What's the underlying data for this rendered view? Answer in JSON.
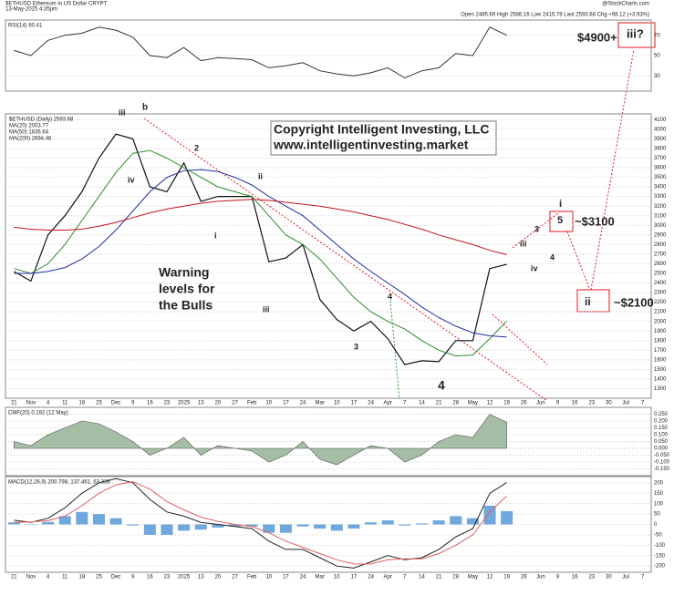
{
  "header": {
    "symbol": "$ETHUSD Ethereum in US Dollar CRYPT",
    "date": "13-May-2025 4:35pm",
    "quote": "Open 2485.69  High 2586.16  Low 2415.78  Last 2593.68  Chg +98.12 (+3.93%)",
    "source": "@StockCharts.com"
  },
  "chart_data": [
    {
      "type": "line",
      "title": "RSI(14) 60.41",
      "ylim": [
        15,
        85
      ],
      "yticks": [
        30,
        50,
        70
      ],
      "grid": true,
      "series": [
        {
          "name": "RSI(14)",
          "color": "#333333",
          "values": [
            55,
            50,
            65,
            70,
            72,
            78,
            75,
            68,
            50,
            48,
            58,
            45,
            48,
            47,
            46,
            38,
            40,
            43,
            35,
            32,
            30,
            33,
            38,
            28,
            35,
            38,
            52,
            50,
            78,
            70,
            null,
            null,
            null,
            null,
            null,
            null,
            null,
            null
          ]
        }
      ]
    },
    {
      "type": "line",
      "ylim": [
        1200,
        4160
      ],
      "yticks": [
        1300,
        1400,
        1500,
        1600,
        1700,
        1800,
        1900,
        2000,
        2100,
        2200,
        2300,
        2400,
        2500,
        2600,
        2700,
        2800,
        2900,
        3000,
        3100,
        3200,
        3300,
        3400,
        3500,
        3600,
        3700,
        3800,
        3900,
        4000,
        4100
      ],
      "grid": true,
      "categories": [
        "21",
        "Nov",
        "4",
        "11",
        "18",
        "25",
        "Dec",
        "9",
        "16",
        "23",
        "2025",
        "13",
        "20",
        "27",
        "Feb",
        "10",
        "17",
        "24",
        "Mar",
        "10",
        "17",
        "24",
        "Apr",
        "7",
        "14",
        "21",
        "28",
        "May",
        "12",
        "19",
        "26",
        "Jun",
        "9",
        "16",
        "23",
        "30",
        "Jul",
        "7"
      ],
      "series": [
        {
          "name": "$ETHUSD (Daily) 2593.68",
          "color": "#111111",
          "values": [
            2520,
            2420,
            2900,
            3100,
            3350,
            3700,
            3950,
            3900,
            3400,
            3350,
            3650,
            3250,
            3300,
            3300,
            3300,
            2620,
            2660,
            2800,
            2230,
            2020,
            1900,
            2000,
            1820,
            1550,
            1590,
            1580,
            1800,
            1800,
            2550,
            2594,
            null,
            null,
            null,
            null,
            null,
            null,
            null,
            null
          ]
        },
        {
          "name": "MA(20) 2003.77",
          "color": "#2e8b2e",
          "values": [
            2550,
            2500,
            2600,
            2800,
            3050,
            3300,
            3550,
            3750,
            3780,
            3700,
            3600,
            3500,
            3400,
            3350,
            3300,
            3100,
            2900,
            2800,
            2650,
            2450,
            2250,
            2100,
            2000,
            1920,
            1800,
            1700,
            1640,
            1650,
            1820,
            2004,
            null,
            null,
            null,
            null,
            null,
            null,
            null,
            null
          ]
        },
        {
          "name": "MA(50) 1836.64",
          "color": "#1f2fa0",
          "values": [
            2500,
            2500,
            2520,
            2560,
            2650,
            2780,
            2950,
            3150,
            3350,
            3500,
            3570,
            3580,
            3560,
            3500,
            3420,
            3300,
            3200,
            3100,
            2950,
            2800,
            2650,
            2520,
            2400,
            2280,
            2150,
            2040,
            1950,
            1880,
            1850,
            1837,
            null,
            null,
            null,
            null,
            null,
            null,
            null,
            null
          ]
        },
        {
          "name": "MA(200) 2694.46",
          "color": "#c0141c",
          "values": [
            2980,
            2960,
            2950,
            2950,
            2960,
            2990,
            3030,
            3080,
            3130,
            3170,
            3200,
            3230,
            3250,
            3260,
            3270,
            3260,
            3240,
            3220,
            3200,
            3170,
            3140,
            3100,
            3060,
            3010,
            2960,
            2900,
            2850,
            2800,
            2740,
            2694,
            null,
            null,
            null,
            null,
            null,
            null,
            null,
            null
          ]
        }
      ],
      "annotations": [
        {
          "text": "Copyright Intelligent Investing, LLC",
          "color": "#000000"
        },
        {
          "text": "www.intelligentinvesting.market",
          "color": "#000000"
        },
        {
          "text": "Warning",
          "color": "#e0141c"
        },
        {
          "text": "levels for",
          "color": "#e0141c"
        },
        {
          "text": "the Bulls",
          "color": "#e0141c"
        },
        {
          "text": "$4900+",
          "color": "#e0141c"
        },
        {
          "text": "iii?",
          "color": "#e0141c"
        },
        {
          "text": "i",
          "color": "#e0141c"
        },
        {
          "text": "5",
          "color": "#2e9a2e"
        },
        {
          "text": "~$3100",
          "color": "#e0141c"
        },
        {
          "text": "ii",
          "color": "#e0141c"
        },
        {
          "text": "~$2100",
          "color": "#e0141c"
        },
        {
          "text": "iii",
          "color": "#555555"
        },
        {
          "text": "b",
          "color": "#e0141c"
        },
        {
          "text": "2",
          "color": "#2e9a2e"
        },
        {
          "text": "ii",
          "color": "#555555"
        },
        {
          "text": "iv",
          "color": "#555555"
        },
        {
          "text": "i",
          "color": "#555555"
        },
        {
          "text": "iii",
          "color": "#555555"
        },
        {
          "text": "4",
          "color": "#2e9a2e"
        },
        {
          "text": "3",
          "color": "#2e9a2e"
        },
        {
          "text": "4",
          "color": "#111111"
        },
        {
          "text": "3",
          "color": "#2e9a2e"
        },
        {
          "text": "4",
          "color": "#2e9a2e"
        },
        {
          "text": "iii",
          "color": "#555555"
        },
        {
          "text": "iv",
          "color": "#555555"
        }
      ]
    },
    {
      "type": "area",
      "title": "CMF(20) 0.192 (12 May)",
      "ylim": [
        -0.2,
        0.3
      ],
      "color": "#8fae8f",
      "yticks": [
        {
          "value": 0.25,
          "label": "0.250"
        },
        {
          "value": 0.2,
          "label": "0.200"
        },
        {
          "value": 0.15,
          "label": "0.150"
        },
        {
          "value": 0.1,
          "label": "0.100"
        },
        {
          "value": 0.05,
          "label": "0.050"
        },
        {
          "value": 0,
          "label": "0.000"
        },
        {
          "value": -0.05,
          "label": "-0.050"
        },
        {
          "value": -0.1,
          "label": "-0.100"
        },
        {
          "value": -0.15,
          "label": "-0.150"
        }
      ],
      "grid": true,
      "series": [
        {
          "name": "CMF(20)",
          "color": "#555555",
          "values": [
            0.05,
            0.02,
            0.1,
            0.15,
            0.2,
            0.18,
            0.12,
            0.05,
            -0.05,
            0,
            0.08,
            -0.05,
            0.02,
            0,
            -0.02,
            -0.1,
            -0.05,
            0.05,
            -0.08,
            -0.12,
            -0.05,
            0.02,
            0,
            -0.1,
            -0.05,
            0.05,
            0.1,
            0.08,
            0.25,
            0.19,
            null,
            null,
            null,
            null,
            null,
            null,
            null,
            null
          ]
        }
      ]
    },
    {
      "type": "line",
      "title": "MACD(12,26,9) 200.798, 137.461, 63.338",
      "ylim": [
        -230,
        230
      ],
      "yticks": [
        200,
        150,
        100,
        50,
        0,
        -50,
        -100,
        -150,
        -200
      ],
      "grid": true,
      "categories": [
        "21",
        "Nov",
        "4",
        "11",
        "18",
        "25",
        "Dec",
        "9",
        "16",
        "23",
        "2025",
        "13",
        "20",
        "27",
        "Feb",
        "10",
        "17",
        "24",
        "Mar",
        "10",
        "17",
        "24",
        "Apr",
        "7",
        "14",
        "21",
        "28",
        "May",
        "12",
        "19",
        "26",
        "Jun",
        "9",
        "16",
        "23",
        "30",
        "Jul",
        "7"
      ],
      "series": [
        {
          "name": "Histogram",
          "type": "bar",
          "color": "#6fa8dc",
          "values": [
            10,
            -2,
            12,
            40,
            60,
            50,
            30,
            -5,
            -50,
            -50,
            -30,
            -25,
            -15,
            -10,
            -10,
            -40,
            -40,
            -10,
            -20,
            -30,
            -20,
            10,
            20,
            -5,
            5,
            20,
            40,
            30,
            90,
            64,
            null,
            null,
            null,
            null,
            null,
            null,
            null,
            null
          ]
        },
        {
          "name": "MACD",
          "color": "#222222",
          "values": [
            20,
            10,
            30,
            80,
            150,
            200,
            220,
            200,
            120,
            60,
            40,
            10,
            0,
            -10,
            -20,
            -80,
            -120,
            -120,
            -160,
            -200,
            -210,
            -180,
            -150,
            -170,
            -160,
            -120,
            -60,
            -20,
            150,
            201,
            null,
            null,
            null,
            null,
            null,
            null,
            null,
            null
          ]
        },
        {
          "name": "Signal",
          "color": "#e06060",
          "values": [
            10,
            12,
            18,
            40,
            90,
            150,
            190,
            205,
            170,
            110,
            70,
            35,
            15,
            0,
            -10,
            -40,
            -80,
            -110,
            -140,
            -170,
            -190,
            -190,
            -170,
            -165,
            -165,
            -140,
            -100,
            -50,
            60,
            137,
            null,
            null,
            null,
            null,
            null,
            null,
            null,
            null
          ]
        }
      ]
    }
  ]
}
